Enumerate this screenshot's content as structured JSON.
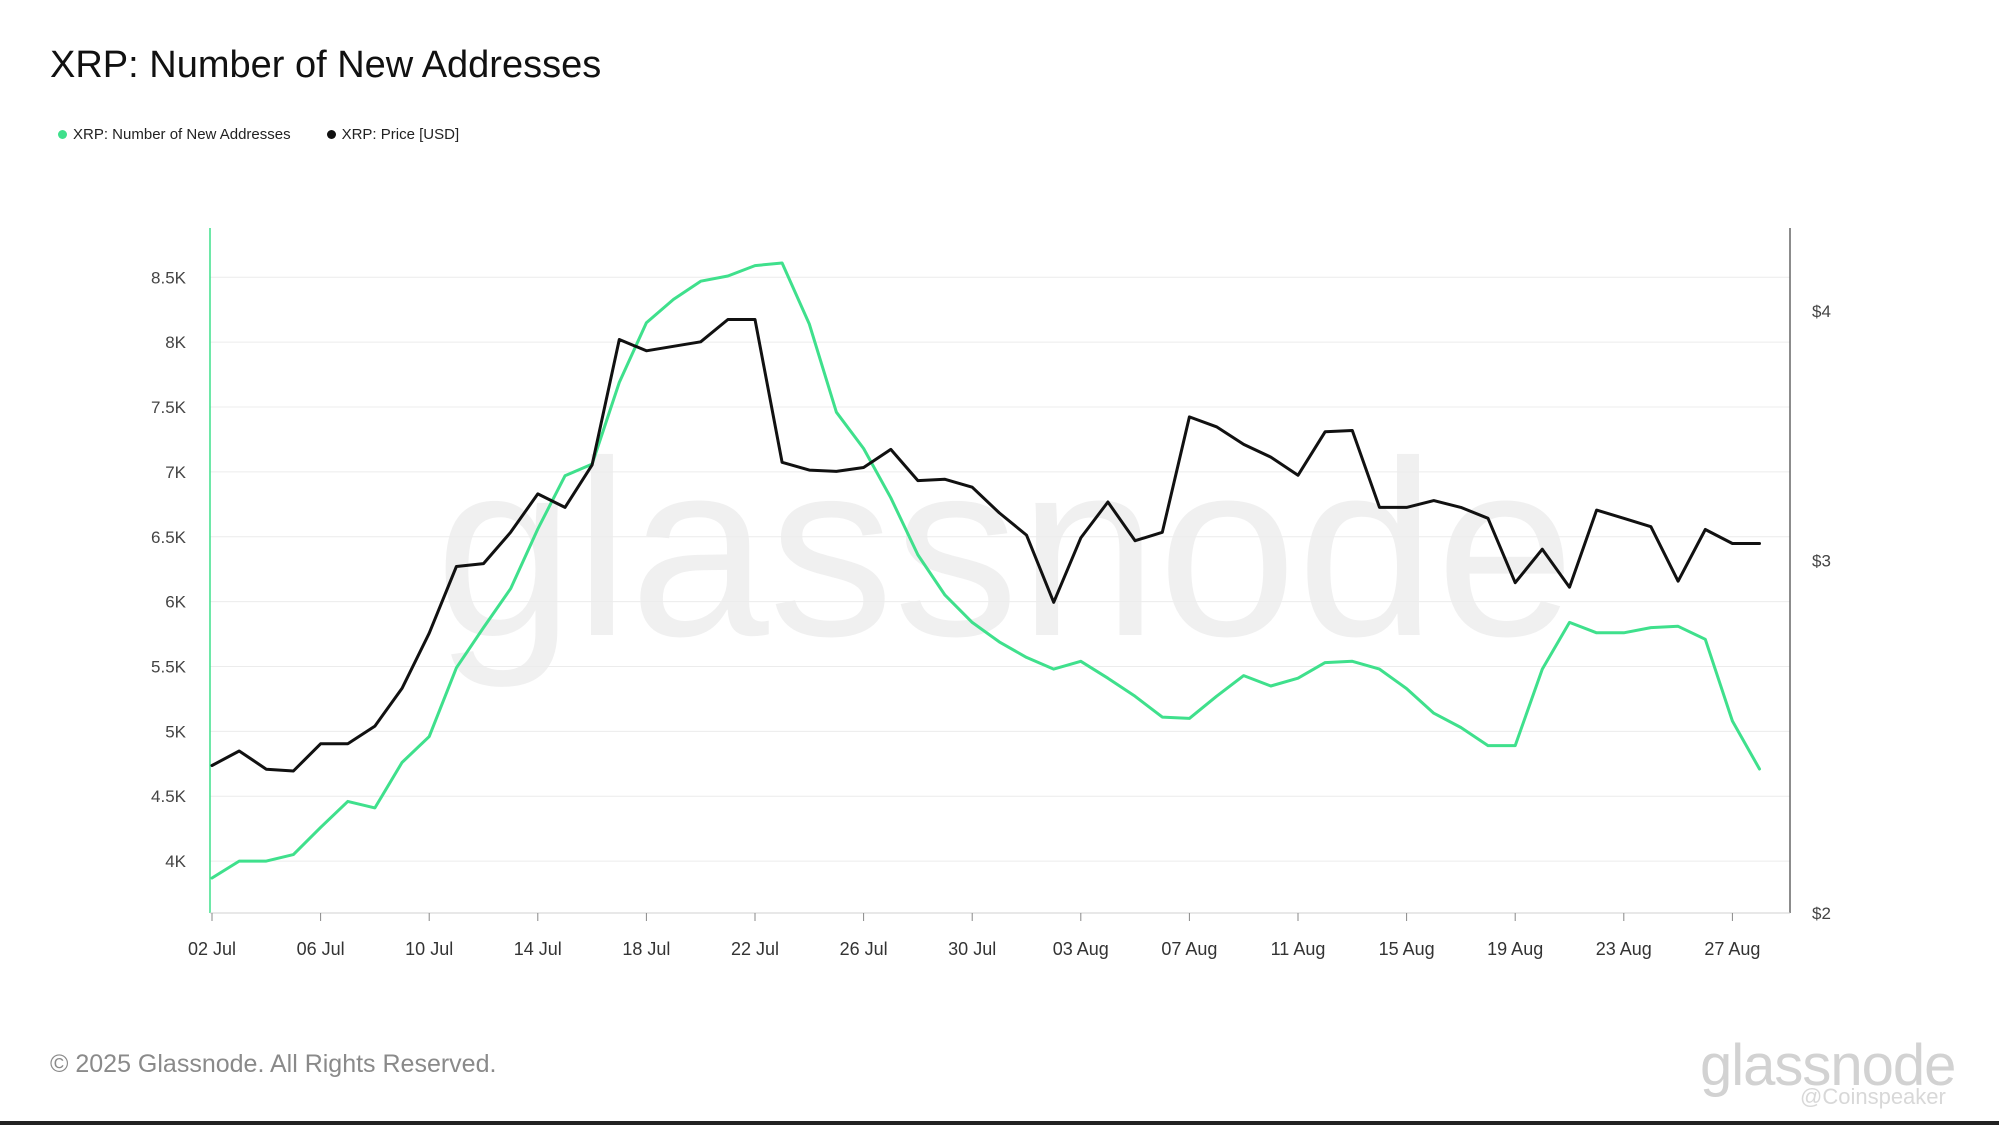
{
  "header": {
    "title": "XRP: Number of New Addresses"
  },
  "legend": [
    {
      "label": "XRP: Number of New Addresses",
      "color": "#3fe08c"
    },
    {
      "label": "XRP: Price [USD]",
      "color": "#111111"
    }
  ],
  "watermark": "glassnode",
  "footer": {
    "copyright": "© 2025 Glassnode. All Rights Reserved.",
    "brand": "glassnode",
    "credit": "@Coinspeaker"
  },
  "chart_data": {
    "type": "line",
    "title": "XRP: Number of New Addresses",
    "x": [
      "02 Jul",
      "03 Jul",
      "04 Jul",
      "05 Jul",
      "06 Jul",
      "07 Jul",
      "08 Jul",
      "09 Jul",
      "10 Jul",
      "11 Jul",
      "12 Jul",
      "13 Jul",
      "14 Jul",
      "15 Jul",
      "16 Jul",
      "17 Jul",
      "18 Jul",
      "19 Jul",
      "20 Jul",
      "21 Jul",
      "22 Jul",
      "23 Jul",
      "24 Jul",
      "25 Jul",
      "26 Jul",
      "27 Jul",
      "28 Jul",
      "29 Jul",
      "30 Jul",
      "31 Jul",
      "01 Aug",
      "02 Aug",
      "03 Aug",
      "04 Aug",
      "05 Aug",
      "06 Aug",
      "07 Aug",
      "08 Aug",
      "09 Aug",
      "10 Aug",
      "11 Aug",
      "12 Aug",
      "13 Aug",
      "14 Aug",
      "15 Aug",
      "16 Aug",
      "17 Aug",
      "18 Aug",
      "19 Aug",
      "20 Aug",
      "21 Aug",
      "22 Aug",
      "23 Aug",
      "24 Aug",
      "25 Aug",
      "26 Aug",
      "27 Aug",
      "28 Aug"
    ],
    "x_ticks": [
      "02 Jul",
      "06 Jul",
      "10 Jul",
      "14 Jul",
      "18 Jul",
      "22 Jul",
      "26 Jul",
      "30 Jul",
      "03 Aug",
      "07 Aug",
      "11 Aug",
      "15 Aug",
      "19 Aug",
      "23 Aug",
      "27 Aug"
    ],
    "series": [
      {
        "name": "XRP: Number of New Addresses",
        "axis": "left",
        "color": "#3fe08c",
        "values": [
          3870,
          4000,
          4000,
          4050,
          4260,
          4460,
          4410,
          4760,
          4960,
          5490,
          5800,
          6100,
          6560,
          6970,
          7060,
          7690,
          8150,
          8330,
          8470,
          8510,
          8590,
          8610,
          8140,
          7460,
          7180,
          6800,
          6360,
          6050,
          5840,
          5690,
          5570,
          5480,
          5540,
          5410,
          5270,
          5110,
          5100,
          5270,
          5430,
          5350,
          5410,
          5530,
          5540,
          5480,
          5330,
          5140,
          5030,
          4890,
          4890,
          5480,
          5840,
          5760,
          5760,
          5800,
          5810,
          5710,
          5080,
          4710
        ]
      },
      {
        "name": "XRP: Price [USD]",
        "axis": "right",
        "color": "#111111",
        "values": [
          2.37,
          2.41,
          2.36,
          2.355,
          2.43,
          2.43,
          2.48,
          2.59,
          2.76,
          2.98,
          2.99,
          3.1,
          3.24,
          3.19,
          3.35,
          3.87,
          3.82,
          3.84,
          3.86,
          3.96,
          3.96,
          3.36,
          3.33,
          3.325,
          3.34,
          3.41,
          3.29,
          3.295,
          3.265,
          3.17,
          3.09,
          2.86,
          3.08,
          3.21,
          3.07,
          3.1,
          3.54,
          3.5,
          3.43,
          3.38,
          3.31,
          3.48,
          3.485,
          3.19,
          3.19,
          3.215,
          3.19,
          3.15,
          2.925,
          3.04,
          2.91,
          3.18,
          3.15,
          3.12,
          2.93,
          3.11,
          3.06,
          3.06
        ]
      }
    ],
    "y_left": {
      "ticks": [
        4000,
        4500,
        5000,
        5500,
        6000,
        6500,
        7000,
        7500,
        8000,
        8500
      ],
      "tick_labels": [
        "4K",
        "4.5K",
        "5K",
        "5.5K",
        "6K",
        "6.5K",
        "7K",
        "7.5K",
        "8K",
        "8.5K"
      ],
      "range": [
        3600,
        8880
      ]
    },
    "y_right": {
      "ticks": [
        2,
        3,
        4
      ],
      "tick_labels": [
        "$2",
        "$3",
        "$4"
      ],
      "range": [
        2,
        4.4
      ],
      "scale": "log"
    },
    "grid": true,
    "legend_position": "top-left"
  }
}
